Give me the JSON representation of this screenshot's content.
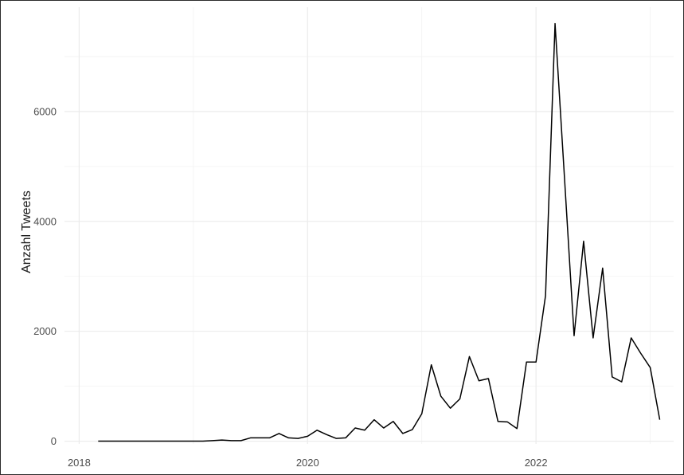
{
  "chart_data": {
    "type": "line",
    "title": "",
    "xlabel": "",
    "ylabel": "Anzahl Tweets",
    "x_ticks": [
      "2018",
      "2020",
      "2022"
    ],
    "y_ticks": [
      "0",
      "2000",
      "4000",
      "6000"
    ],
    "xlim": [
      "2017-11-15",
      "2023-03-15"
    ],
    "ylim": [
      -50,
      7900
    ],
    "grid": true,
    "legend": "none",
    "series": [
      {
        "color": "#000000",
        "x": [
          "2018-03",
          "2018-04",
          "2018-05",
          "2018-06",
          "2018-07",
          "2018-08",
          "2018-09",
          "2018-10",
          "2018-11",
          "2018-12",
          "2019-01",
          "2019-02",
          "2019-03",
          "2019-04",
          "2019-05",
          "2019-06",
          "2019-07",
          "2019-08",
          "2019-09",
          "2019-10",
          "2019-11",
          "2019-12",
          "2020-01",
          "2020-02",
          "2020-03",
          "2020-04",
          "2020-05",
          "2020-06",
          "2020-07",
          "2020-08",
          "2020-09",
          "2020-10",
          "2020-11",
          "2020-12",
          "2021-01",
          "2021-02",
          "2021-03",
          "2021-04",
          "2021-05",
          "2021-06",
          "2021-07",
          "2021-08",
          "2021-09",
          "2021-10",
          "2021-11",
          "2021-12",
          "2022-01",
          "2022-02",
          "2022-03",
          "2022-04",
          "2022-05",
          "2022-06",
          "2022-07",
          "2022-08",
          "2022-09",
          "2022-10",
          "2022-11",
          "2022-12",
          "2023-01",
          "2023-02"
        ],
        "y": [
          0,
          0,
          0,
          0,
          0,
          0,
          0,
          0,
          0,
          0,
          0,
          0,
          10,
          20,
          10,
          10,
          60,
          60,
          60,
          140,
          60,
          50,
          90,
          200,
          120,
          50,
          60,
          240,
          200,
          390,
          240,
          360,
          140,
          210,
          500,
          1390,
          820,
          600,
          770,
          1540,
          1100,
          1140,
          360,
          350,
          230,
          1440,
          1440,
          2650,
          7600,
          4770,
          1920,
          3640,
          1880,
          3150,
          1170,
          1080,
          1880,
          1600,
          1340,
          390
        ]
      }
    ]
  }
}
